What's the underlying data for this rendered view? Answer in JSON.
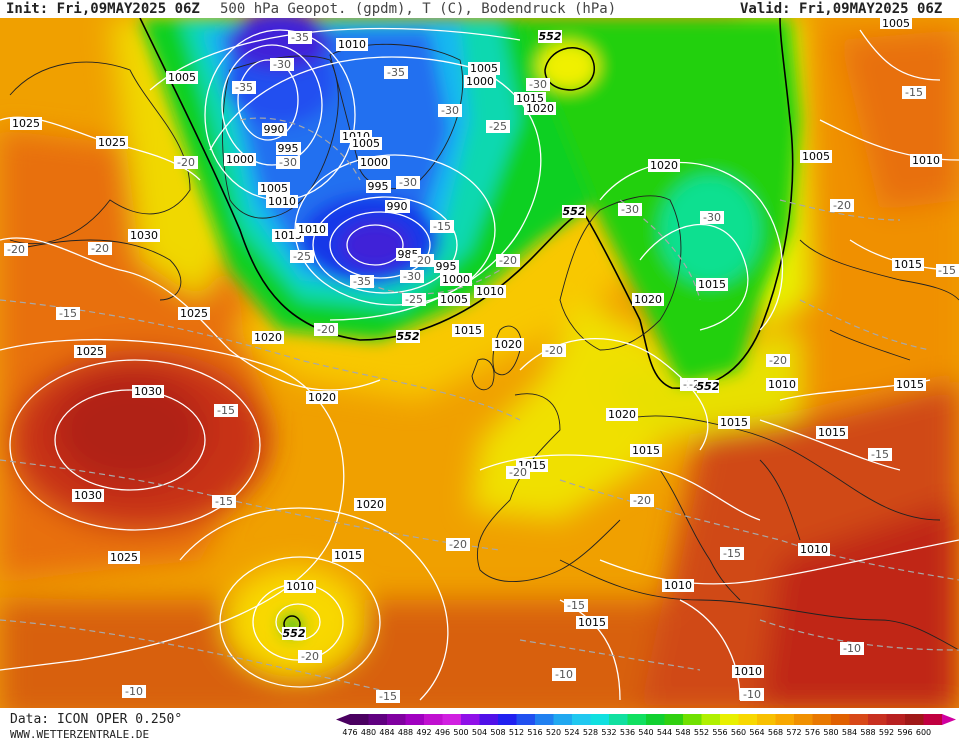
{
  "header": {
    "init": "Init: Fri,09MAY2025 06Z",
    "title": "500 hPa Geopot. (gpdm), T (C), Bodendruck (hPa)",
    "valid": "Valid: Fri,09MAY2025 06Z"
  },
  "footer": {
    "data_source": "Data: ICON OPER 0.250°",
    "website": "WWW.WETTERZENTRALE.DE"
  },
  "colors": {
    "low_purple": "#4010c0",
    "blue": "#1848f0",
    "cyan": "#10c8e0",
    "green": "#10d020",
    "yellow": "#f0f000",
    "orange": "#f09000",
    "red": "#c83010",
    "isobar": "#ffffff",
    "temp_isoline": "#a8a8a8"
  },
  "scale": {
    "values": [
      "476",
      "480",
      "484",
      "488",
      "492",
      "496",
      "500",
      "504",
      "508",
      "512",
      "516",
      "520",
      "524",
      "528",
      "532",
      "536",
      "540",
      "544",
      "548",
      "552",
      "556",
      "560",
      "564",
      "568",
      "572",
      "576",
      "580",
      "584",
      "588",
      "592",
      "596",
      "600"
    ],
    "colors": [
      "#4a0060",
      "#600080",
      "#8000a0",
      "#a000c0",
      "#c010d0",
      "#d020e0",
      "#9010e8",
      "#5010e8",
      "#2020f0",
      "#2050f0",
      "#2080f0",
      "#20a8f0",
      "#20c8f0",
      "#10e0e0",
      "#10e0a0",
      "#10e060",
      "#10d030",
      "#30d010",
      "#70e000",
      "#b0f000",
      "#e8f000",
      "#f8d800",
      "#f8c000",
      "#f8a800",
      "#f09000",
      "#e87800",
      "#e06000",
      "#d84818",
      "#c83020",
      "#b82020",
      "#a01818",
      "#c00040"
    ]
  },
  "pressure_labels": [
    {
      "text": "1010"
    },
    {
      "text": "1005"
    },
    {
      "text": "1025"
    },
    {
      "text": "1025"
    },
    {
      "text": "990"
    },
    {
      "text": "995"
    },
    {
      "text": "1000"
    },
    {
      "text": "1005"
    },
    {
      "text": "1010"
    },
    {
      "text": "1015"
    },
    {
      "text": "1010"
    },
    {
      "text": "1030"
    },
    {
      "text": "1010"
    },
    {
      "text": "1005"
    },
    {
      "text": "1000"
    },
    {
      "text": "995"
    },
    {
      "text": "990"
    },
    {
      "text": "985"
    },
    {
      "text": "995"
    },
    {
      "text": "1000"
    },
    {
      "text": "1005"
    },
    {
      "text": "1010"
    },
    {
      "text": "1005"
    },
    {
      "text": "1000"
    },
    {
      "text": "1015"
    },
    {
      "text": "1020"
    },
    {
      "text": "1020"
    },
    {
      "text": "1005"
    },
    {
      "text": "1010"
    },
    {
      "text": "1025"
    },
    {
      "text": "1020"
    },
    {
      "text": "1025"
    },
    {
      "text": "1030"
    },
    {
      "text": "1020"
    },
    {
      "text": "1015"
    },
    {
      "text": "1020"
    },
    {
      "text": "1030"
    },
    {
      "text": "1020"
    },
    {
      "text": "1015"
    },
    {
      "text": "1025"
    },
    {
      "text": "1010"
    },
    {
      "text": "1015"
    },
    {
      "text": "1015"
    },
    {
      "text": "1020"
    },
    {
      "text": "1015"
    },
    {
      "text": "1015"
    },
    {
      "text": "1010"
    },
    {
      "text": "1015"
    },
    {
      "text": "1020"
    },
    {
      "text": "1015"
    },
    {
      "text": "1015"
    },
    {
      "text": "1010"
    },
    {
      "text": "1015"
    },
    {
      "text": "1010"
    },
    {
      "text": "1010"
    },
    {
      "text": "1005"
    }
  ],
  "temp_labels": [
    {
      "text": "-35"
    },
    {
      "text": "-35"
    },
    {
      "text": "-30"
    },
    {
      "text": "-35"
    },
    {
      "text": "-30"
    },
    {
      "text": "-20"
    },
    {
      "text": "-30"
    },
    {
      "text": "-25"
    },
    {
      "text": "-30"
    },
    {
      "text": "-20"
    },
    {
      "text": "-25"
    },
    {
      "text": "-35"
    },
    {
      "text": "-30"
    },
    {
      "text": "-25"
    },
    {
      "text": "-20"
    },
    {
      "text": "-20"
    },
    {
      "text": "-15"
    },
    {
      "text": "-20"
    },
    {
      "text": "-30"
    },
    {
      "text": "-30"
    },
    {
      "text": "-20"
    },
    {
      "text": "-20"
    },
    {
      "text": "-15"
    },
    {
      "text": "-15"
    },
    {
      "text": "-15"
    },
    {
      "text": "-25"
    },
    {
      "text": "-20"
    },
    {
      "text": "-20"
    },
    {
      "text": "-15"
    },
    {
      "text": "-20"
    },
    {
      "text": "-15"
    },
    {
      "text": "-20"
    },
    {
      "text": "-15"
    },
    {
      "text": "-10"
    },
    {
      "text": "-10"
    },
    {
      "text": "-10"
    },
    {
      "text": "-15"
    },
    {
      "text": "-20"
    },
    {
      "text": "-10"
    },
    {
      "text": "-15"
    },
    {
      "text": "-30"
    },
    {
      "text": "-20"
    },
    {
      "text": "-25"
    },
    {
      "text": "-15"
    }
  ],
  "height_labels": [
    {
      "text": "552"
    },
    {
      "text": "552"
    },
    {
      "text": "552"
    },
    {
      "text": "552"
    },
    {
      "text": "552"
    }
  ]
}
